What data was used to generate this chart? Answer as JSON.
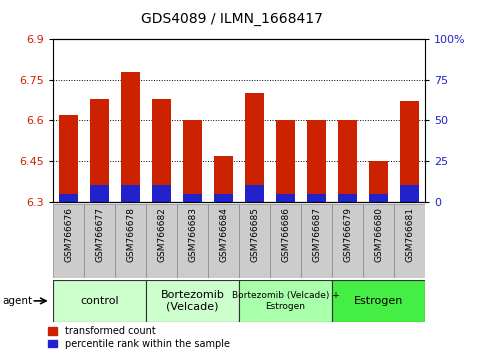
{
  "title": "GDS4089 / ILMN_1668417",
  "samples": [
    "GSM766676",
    "GSM766677",
    "GSM766678",
    "GSM766682",
    "GSM766683",
    "GSM766684",
    "GSM766685",
    "GSM766686",
    "GSM766687",
    "GSM766679",
    "GSM766680",
    "GSM766681"
  ],
  "red_values": [
    6.62,
    6.68,
    6.78,
    6.68,
    6.6,
    6.47,
    6.7,
    6.6,
    6.6,
    6.6,
    6.45,
    6.67
  ],
  "blue_percentiles": [
    5,
    10,
    10,
    10,
    5,
    5,
    10,
    5,
    5,
    5,
    5,
    10
  ],
  "ymin": 6.3,
  "ymax": 6.9,
  "y_ticks_left": [
    6.3,
    6.45,
    6.6,
    6.75,
    6.9
  ],
  "y_ticks_right": [
    0,
    25,
    50,
    75,
    100
  ],
  "bar_color_red": "#cc2200",
  "bar_color_blue": "#2222cc",
  "bar_width": 0.6,
  "groups": [
    {
      "label": "control",
      "start": 0,
      "end": 3,
      "color": "#ccffcc"
    },
    {
      "label": "Bortezomib\n(Velcade)",
      "start": 3,
      "end": 6,
      "color": "#ccffcc"
    },
    {
      "label": "Bortezomib (Velcade) +\nEstrogen",
      "start": 6,
      "end": 9,
      "color": "#aaffaa"
    },
    {
      "label": "Estrogen",
      "start": 9,
      "end": 12,
      "color": "#44ee44"
    }
  ],
  "agent_label": "agent",
  "legend_red": "transformed count",
  "legend_blue": "percentile rank within the sample",
  "tick_label_color_left": "#cc2200",
  "tick_label_color_right": "#2222cc",
  "xtick_bg": "#cccccc",
  "group_border_color": "#000000"
}
